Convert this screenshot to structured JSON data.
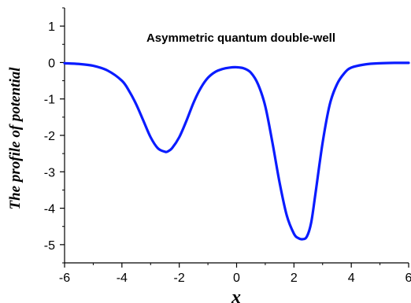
{
  "chart_data": {
    "type": "line",
    "title": "",
    "annotation": "Asymmetric quantum double-well",
    "xlabel": "x",
    "ylabel": "The profile of potential",
    "xlim": [
      -6,
      6
    ],
    "ylim": [
      -5.5,
      1.5
    ],
    "xticks": [
      -6,
      -4,
      -2,
      0,
      2,
      4,
      6
    ],
    "yticks": [
      1,
      0,
      -1,
      -2,
      -3,
      -4,
      -5
    ],
    "grid": false,
    "legend": "none",
    "line_color": "#0a1cff",
    "series": [
      {
        "x": [
          -6.0,
          -5.5,
          -5.0,
          -4.5,
          -4.0,
          -3.75,
          -3.5,
          -3.25,
          -3.0,
          -2.75,
          -2.5,
          -2.4,
          -2.25,
          -2.0,
          -1.75,
          -1.5,
          -1.25,
          -1.0,
          -0.75,
          -0.5,
          -0.25,
          0.0,
          0.25,
          0.5,
          0.75,
          1.0,
          1.25,
          1.5,
          1.75,
          2.0,
          2.15,
          2.3,
          2.45,
          2.6,
          2.75,
          3.0,
          3.25,
          3.5,
          3.75,
          4.0,
          4.5,
          5.0,
          5.5,
          6.0
        ],
        "y": [
          -0.02,
          -0.04,
          -0.09,
          -0.22,
          -0.5,
          -0.78,
          -1.15,
          -1.6,
          -2.05,
          -2.35,
          -2.45,
          -2.44,
          -2.35,
          -2.05,
          -1.6,
          -1.1,
          -0.7,
          -0.42,
          -0.26,
          -0.18,
          -0.14,
          -0.13,
          -0.16,
          -0.28,
          -0.6,
          -1.2,
          -2.2,
          -3.3,
          -4.2,
          -4.7,
          -4.82,
          -4.85,
          -4.78,
          -4.4,
          -3.6,
          -2.2,
          -1.15,
          -0.6,
          -0.3,
          -0.14,
          -0.05,
          -0.02,
          -0.01,
          -0.01
        ]
      }
    ]
  }
}
